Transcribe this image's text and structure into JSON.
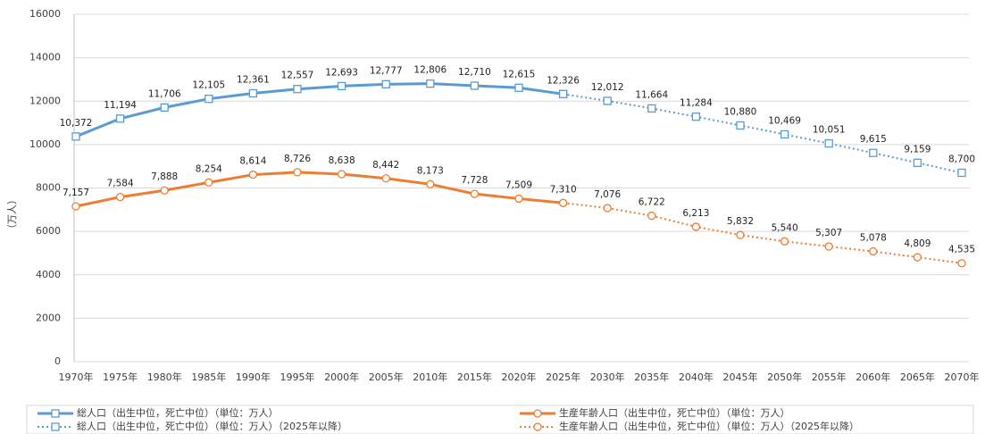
{
  "chart_data": {
    "type": "line",
    "y_label": "（万人）",
    "categories": [
      "1970年",
      "1975年",
      "1980年",
      "1985年",
      "1990年",
      "1995年",
      "2000年",
      "2005年",
      "2010年",
      "2015年",
      "2020年",
      "2025年",
      "2030年",
      "2035年",
      "2040年",
      "2045年",
      "2050年",
      "2055年",
      "2060年",
      "2065年",
      "2070年"
    ],
    "ylim": [
      0,
      16000
    ],
    "yticks": [
      0,
      2000,
      4000,
      6000,
      8000,
      10000,
      12000,
      14000,
      16000
    ],
    "grid": true,
    "series": [
      {
        "name": "総人口（出生中位，死亡中位）（単位：万人）",
        "color": "#5b9bd5",
        "dash": false,
        "marker": "square",
        "values": [
          10372,
          11194,
          11706,
          12105,
          12361,
          12557,
          12693,
          12777,
          12806,
          12710,
          12615,
          12326,
          null,
          null,
          null,
          null,
          null,
          null,
          null,
          null,
          null
        ],
        "value_labels": [
          "10,372",
          "11,194",
          "11,706",
          "12,105",
          "12,361",
          "12,557",
          "12,693",
          "12,777",
          "12,806",
          "12,710",
          "12,615",
          "12,326",
          null,
          null,
          null,
          null,
          null,
          null,
          null,
          null,
          null
        ]
      },
      {
        "name": "総人口（出生中位，死亡中位）（単位：万人）（2025年以降）",
        "color": "#5b9bd5",
        "dash": true,
        "marker": "square",
        "values": [
          null,
          null,
          null,
          null,
          null,
          null,
          null,
          null,
          null,
          null,
          null,
          12326,
          12012,
          11664,
          11284,
          10880,
          10469,
          10051,
          9615,
          9159,
          8700
        ],
        "value_labels": [
          null,
          null,
          null,
          null,
          null,
          null,
          null,
          null,
          null,
          null,
          null,
          null,
          "12,012",
          "11,664",
          "11,284",
          "10,880",
          "10,469",
          "10,051",
          "9,615",
          "9,159",
          "8,700"
        ]
      },
      {
        "name": "生産年齢人口（出生中位，死亡中位）（単位：万人）",
        "color": "#ed7d31",
        "dash": false,
        "marker": "circle",
        "values": [
          7157,
          7584,
          7888,
          8254,
          8614,
          8726,
          8638,
          8442,
          8173,
          7728,
          7509,
          7310,
          null,
          null,
          null,
          null,
          null,
          null,
          null,
          null,
          null
        ],
        "value_labels": [
          "7,157",
          "7,584",
          "7,888",
          "8,254",
          "8,614",
          "8,726",
          "8,638",
          "8,442",
          "8,173",
          "7,728",
          "7,509",
          "7,310",
          null,
          null,
          null,
          null,
          null,
          null,
          null,
          null,
          null
        ]
      },
      {
        "name": "生産年齢人口（出生中位，死亡中位）（単位：万人）（2025年以降）",
        "color": "#ed7d31",
        "dash": true,
        "marker": "circle",
        "values": [
          null,
          null,
          null,
          null,
          null,
          null,
          null,
          null,
          null,
          null,
          null,
          7310,
          7076,
          6722,
          6213,
          5832,
          5540,
          5307,
          5078,
          4809,
          4535
        ],
        "value_labels": [
          null,
          null,
          null,
          null,
          null,
          null,
          null,
          null,
          null,
          null,
          null,
          null,
          "7,076",
          "6,722",
          "6,213",
          "5,832",
          "5,540",
          "5,307",
          "5,078",
          "4,809",
          "4,535"
        ]
      }
    ]
  }
}
